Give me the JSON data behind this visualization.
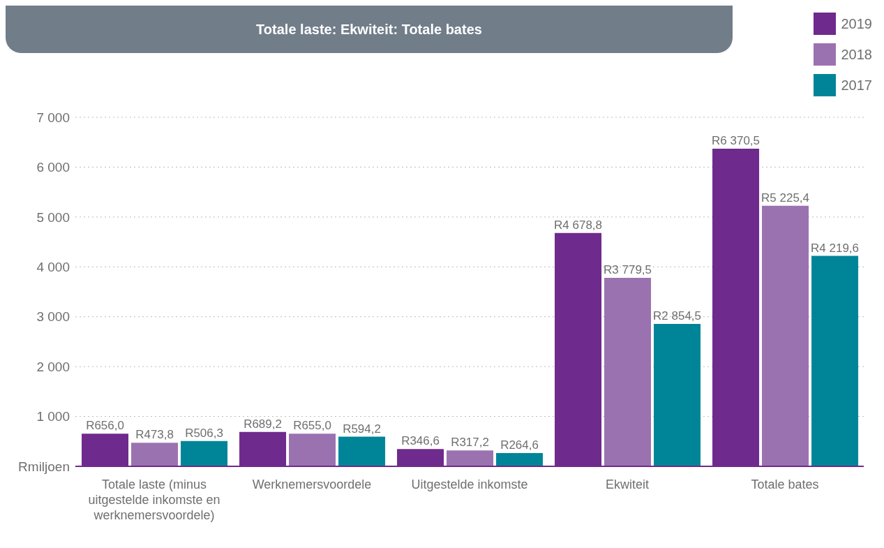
{
  "chart_data": {
    "type": "bar",
    "title": "Totale laste: Ekwiteit: Totale bates",
    "categories": [
      "Totale laste (minus uitgestelde inkomste en werknemersvoordele)",
      "Werknemersvoordele",
      "Uitgestelde inkomste",
      "Ekwiteit",
      "Totale bates"
    ],
    "series": [
      {
        "name": "2019",
        "color": "#6e2a8c",
        "values": [
          656.0,
          689.2,
          346.6,
          4678.8,
          6370.5
        ],
        "value_labels": [
          "R656,0",
          "R689,2",
          "R346,6",
          "R4 678,8",
          "R6 370,5"
        ]
      },
      {
        "name": "2018",
        "color": "#9b72b0",
        "values": [
          473.8,
          655.0,
          317.2,
          3779.5,
          5225.4
        ],
        "value_labels": [
          "R473,8",
          "R655,0",
          "R317,2",
          "R3 779,5",
          "R5 225,4"
        ]
      },
      {
        "name": "2017",
        "color": "#008598",
        "values": [
          506.3,
          594.2,
          264.6,
          2854.5,
          4219.6
        ],
        "value_labels": [
          "R506,3",
          "R594,2",
          "R264,6",
          "R2 854,5",
          "R4 219,6"
        ]
      }
    ],
    "ylim": [
      0,
      7000
    ],
    "yticks": [
      {
        "value": 0,
        "label": "Rmiljoen"
      },
      {
        "value": 1000,
        "label": "1 000"
      },
      {
        "value": 2000,
        "label": "2 000"
      },
      {
        "value": 3000,
        "label": "3 000"
      },
      {
        "value": 4000,
        "label": "4 000"
      },
      {
        "value": 5000,
        "label": "5 000"
      },
      {
        "value": 6000,
        "label": "6 000"
      },
      {
        "value": 7000,
        "label": "7 000"
      }
    ],
    "grid": "y",
    "legend": "top right"
  }
}
